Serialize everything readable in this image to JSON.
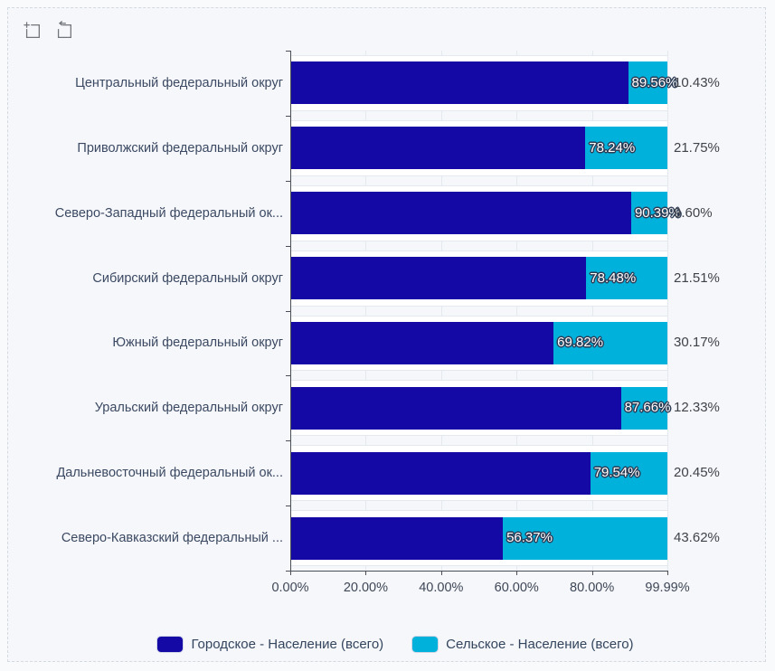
{
  "toolbox": {
    "icons": [
      {
        "name": "zoom-select"
      },
      {
        "name": "zoom-reset"
      }
    ]
  },
  "colors": {
    "urban": "#1409a5",
    "rural": "#00b1dc",
    "background": "#f6f7fa",
    "band": "#ffffff",
    "gridline": "#e4e8ef",
    "axis": "#4a4f57"
  },
  "chart_data": {
    "type": "bar",
    "orientation": "horizontal",
    "stacked": true,
    "grid": true,
    "legend_position": "bottom",
    "categories": [
      "Центральный федеральный округ",
      "Приволжский федеральный округ",
      "Северо-Западный федеральный ок...",
      "Сибирский федеральный округ",
      "Южный федеральный округ",
      "Уральский федеральный округ",
      "Дальневосточный федеральный ок...",
      "Северо-Кавказский федеральный ..."
    ],
    "series": [
      {
        "name": "Городское - Население (всего)",
        "color": "#1409a5",
        "values": [
          89.56,
          78.24,
          90.39,
          78.48,
          69.82,
          87.66,
          79.54,
          56.37
        ],
        "labels": [
          "89.56%",
          "78.24%",
          "90.39%",
          "78.48%",
          "69.82%",
          "87.66%",
          "79.54%",
          "56.37%"
        ]
      },
      {
        "name": "Сельское - Население (всего)",
        "color": "#00b1dc",
        "values": [
          10.43,
          21.75,
          9.6,
          21.51,
          30.17,
          12.33,
          20.45,
          43.62
        ],
        "labels": [
          "10.43%",
          "21.75%",
          "9.60%",
          "21.51%",
          "30.17%",
          "12.33%",
          "20.45%",
          "43.62%"
        ]
      }
    ],
    "xlim": [
      0,
      99.99
    ],
    "x_tick_values": [
      0,
      20,
      40,
      60,
      80,
      99.99
    ],
    "x_tick_labels": [
      "0.00%",
      "20.00%",
      "40.00%",
      "60.00%",
      "80.00%",
      "99.99%"
    ]
  }
}
